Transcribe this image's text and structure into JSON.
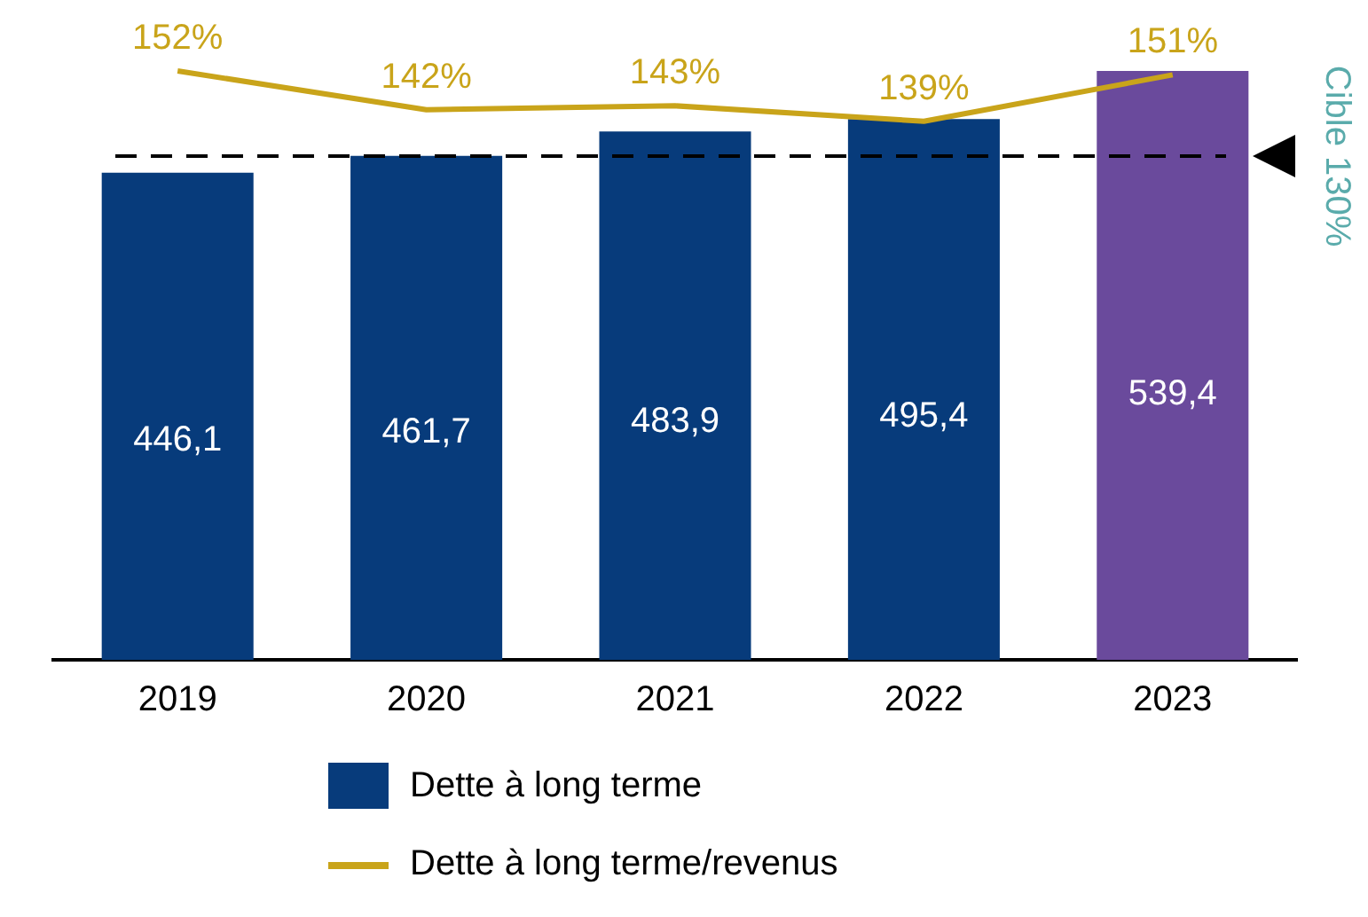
{
  "chart_data": {
    "type": "bar",
    "categories": [
      "2019",
      "2020",
      "2021",
      "2022",
      "2023"
    ],
    "series": [
      {
        "name": "Dette à long terme",
        "color": "#073b7b",
        "colors": [
          "#073b7b",
          "#073b7b",
          "#073b7b",
          "#073b7b",
          "#6a4a9c"
        ],
        "values": [
          446.1,
          461.7,
          483.9,
          495.4,
          539.4
        ],
        "value_labels": [
          "446,1",
          "461,7",
          "483,9",
          "495,4",
          "539,4"
        ]
      },
      {
        "name": "Dette à long terme/revenus",
        "type": "line",
        "axis": "y2",
        "color": "#c9a41a",
        "values": [
          152,
          142,
          143,
          139,
          151
        ],
        "value_labels": [
          "152%",
          "142%",
          "143%",
          "139%",
          "151%"
        ]
      }
    ],
    "ref_lines": [
      {
        "axis": "y2",
        "value": 130,
        "label": "Cible 130%",
        "line_style": "dashed"
      }
    ],
    "tick_labels": "x",
    "grid": false,
    "legend": "bottom"
  }
}
